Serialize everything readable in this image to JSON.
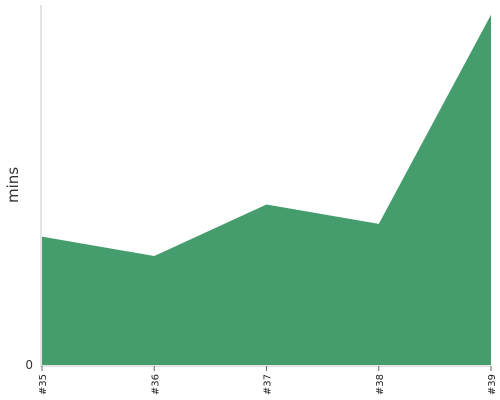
{
  "chart_data": {
    "type": "area",
    "categories": [
      "#35",
      "#36",
      "#37",
      "#38",
      "#39"
    ],
    "series": [
      {
        "values": [
          13.2,
          11.2,
          16.5,
          14.5,
          36.0
        ],
        "color": "#459d6d"
      }
    ],
    "ylabel": "mins",
    "xlabel": "",
    "y_tick_labels": [
      "0"
    ],
    "ylim": [
      0,
      37.0
    ],
    "grid": false,
    "legend": "none"
  }
}
